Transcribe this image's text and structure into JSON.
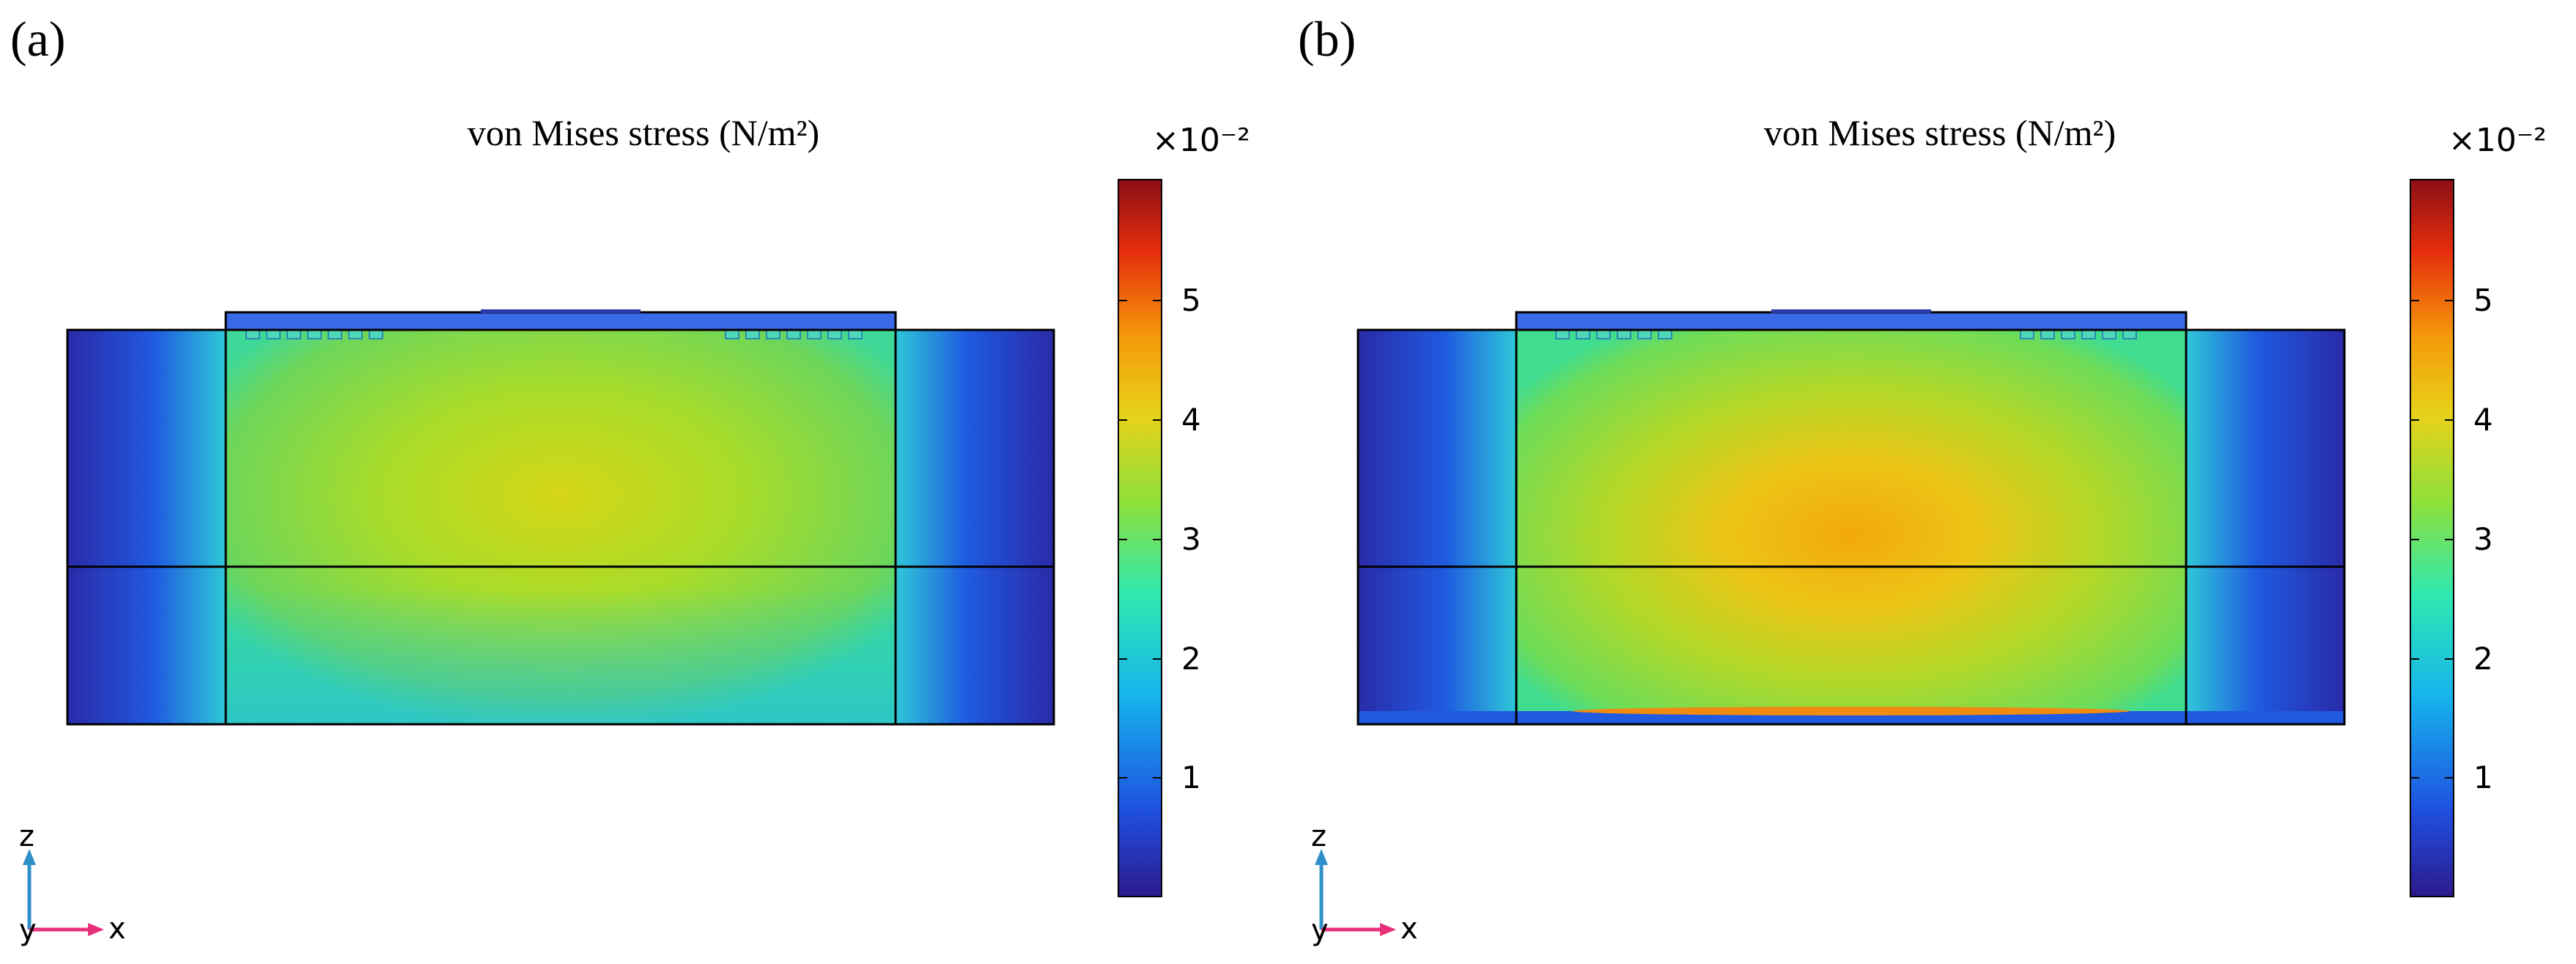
{
  "panels": [
    {
      "id": "a",
      "label": "(a)",
      "title": "von Mises stress (N/m²)",
      "colorbar": {
        "multiplier": "×10⁻²",
        "ticks": [
          "1",
          "2",
          "3",
          "4",
          "5"
        ],
        "tick_values": [
          1,
          2,
          3,
          4,
          5
        ],
        "range": [
          0,
          6
        ]
      },
      "axes": {
        "z": "z",
        "x": "x",
        "y": "y"
      }
    },
    {
      "id": "b",
      "label": "(b)",
      "title": "von Mises stress (N/m²)",
      "colorbar": {
        "multiplier": "×10⁻²",
        "ticks": [
          "1",
          "2",
          "3",
          "4",
          "5"
        ],
        "tick_values": [
          1,
          2,
          3,
          4,
          5
        ],
        "range": [
          0,
          6
        ]
      },
      "axes": {
        "z": "z",
        "x": "x",
        "y": "y"
      }
    }
  ],
  "colormap": {
    "name": "rainbow",
    "stops": [
      "#2c1a8c",
      "#1f50e0",
      "#16b4ec",
      "#2fe8b0",
      "#8ee03a",
      "#e6d21a",
      "#f59a0a",
      "#e52e0c",
      "#8c0f16"
    ]
  }
}
